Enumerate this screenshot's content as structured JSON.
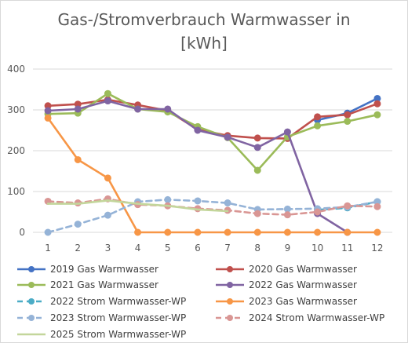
{
  "chart_data": {
    "type": "line",
    "title": "Gas-/Stromverbrauch Warmwasser in [kWh]",
    "xlabel": "",
    "ylabel": "",
    "x": [
      1,
      2,
      3,
      4,
      5,
      6,
      7,
      8,
      9,
      10,
      11,
      12
    ],
    "ylim": [
      0,
      400
    ],
    "yticks": [
      0,
      100,
      200,
      300,
      400
    ],
    "grid": true,
    "legend_position": "bottom",
    "series": [
      {
        "name": "2019 Gas Warmwasser",
        "color": "#4472c4",
        "dash": false,
        "values": [
          null,
          null,
          null,
          null,
          null,
          null,
          null,
          null,
          null,
          275,
          292,
          328
        ]
      },
      {
        "name": "2020 Gas Warmwasser",
        "color": "#c0504d",
        "dash": false,
        "values": [
          310,
          314,
          325,
          312,
          298,
          252,
          237,
          231,
          230,
          283,
          288,
          315
        ]
      },
      {
        "name": "2021 Gas Warmwasser",
        "color": "#9bbb59",
        "dash": false,
        "values": [
          290,
          292,
          340,
          302,
          295,
          259,
          232,
          152,
          234,
          261,
          272,
          288
        ]
      },
      {
        "name": "2022 Gas Warmwasser",
        "color": "#8064a2",
        "dash": false,
        "values": [
          298,
          302,
          322,
          302,
          302,
          250,
          233,
          208,
          246,
          46,
          0,
          null
        ]
      },
      {
        "name": "2022 Strom Warmwasser-WP",
        "color": "#4bacc6",
        "dash": true,
        "values": [
          null,
          null,
          null,
          null,
          null,
          null,
          null,
          null,
          null,
          55,
          60,
          75
        ]
      },
      {
        "name": "2023 Gas Warmwasser",
        "color": "#f79646",
        "dash": false,
        "values": [
          280,
          178,
          133,
          0,
          0,
          0,
          0,
          0,
          0,
          0,
          0,
          0
        ]
      },
      {
        "name": "2023 Strom Warmwasser-WP",
        "color": "#95b3d7",
        "dash": true,
        "values": [
          0,
          20,
          42,
          75,
          80,
          77,
          72,
          56,
          57,
          58,
          62,
          75
        ]
      },
      {
        "name": "2024 Strom Warmwasser-WP",
        "color": "#d99694",
        "dash": true,
        "values": [
          76,
          72,
          82,
          68,
          65,
          58,
          54,
          46,
          43,
          50,
          65,
          63
        ]
      },
      {
        "name": "2025 Strom Warmwasser-WP",
        "color": "#c3d69b",
        "dash": false,
        "values": [
          70,
          70,
          78,
          70,
          65,
          56,
          52,
          null,
          null,
          null,
          null,
          null
        ]
      }
    ]
  }
}
